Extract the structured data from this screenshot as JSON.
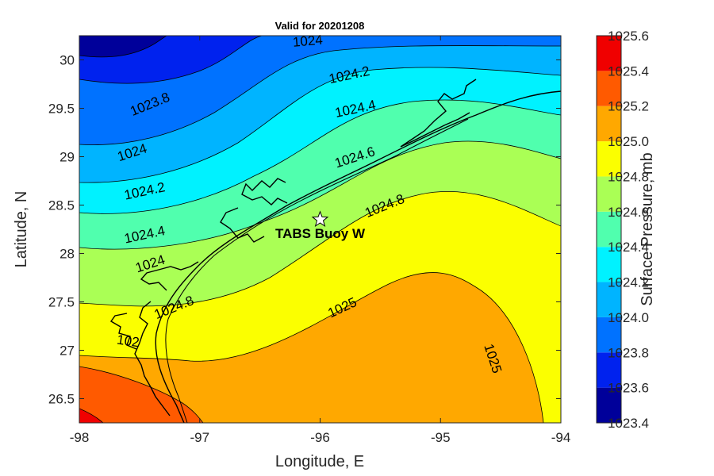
{
  "chart_data": {
    "type": "contour-map",
    "title": "Valid for 20201208",
    "xlabel": "Longitude, E",
    "ylabel": "Latitude, N",
    "xlim": [
      -98,
      -94
    ],
    "ylim": [
      26.25,
      30.25
    ],
    "xticks": [
      "-98",
      "-97",
      "-96",
      "-95",
      "-94"
    ],
    "yticks": [
      "26.5",
      "27",
      "27.5",
      "28",
      "28.5",
      "29",
      "29.5",
      "30"
    ],
    "colorbar": {
      "label": "Surface Pressure, mb",
      "ticks": [
        "1023.4",
        "1023.6",
        "1023.8",
        "1024.0",
        "1024.2",
        "1024.4",
        "1024.6",
        "1024.8",
        "1025.0",
        "1025.2",
        "1025.4",
        "1025.6"
      ],
      "levels": [
        1023.4,
        1023.6,
        1023.8,
        1024.0,
        1024.2,
        1024.4,
        1024.6,
        1024.8,
        1025.0,
        1025.2,
        1025.4,
        1025.6
      ],
      "colors": [
        "#00009a",
        "#0022ee",
        "#0072ff",
        "#00b4ff",
        "#00f2ff",
        "#50ffae",
        "#aaff55",
        "#fbff00",
        "#ffa800",
        "#ff5a00",
        "#f00000"
      ]
    },
    "contour_labels": [
      {
        "text": "1024",
        "lon": -96.1,
        "lat": 30.15
      },
      {
        "text": "1024.2",
        "lon": -95.75,
        "lat": 29.8
      },
      {
        "text": "1024.4",
        "lon": -95.7,
        "lat": 29.45
      },
      {
        "text": "1024.6",
        "lon": -95.7,
        "lat": 28.95
      },
      {
        "text": "1024.8",
        "lon": -95.45,
        "lat": 28.45
      },
      {
        "text": "1025",
        "lon": -95.8,
        "lat": 27.4
      },
      {
        "text": "1025",
        "lon": -94.6,
        "lat": 26.9
      },
      {
        "text": "1023.8",
        "lon": -97.4,
        "lat": 29.5
      },
      {
        "text": "1024",
        "lon": -97.55,
        "lat": 29.0
      },
      {
        "text": "1024.2",
        "lon": -97.45,
        "lat": 28.6
      },
      {
        "text": "1024.4",
        "lon": -97.45,
        "lat": 28.15
      },
      {
        "text": "1024",
        "lon": -97.4,
        "lat": 27.85
      },
      {
        "text": "1024.8",
        "lon": -97.2,
        "lat": 27.4
      },
      {
        "text": "102",
        "lon": -97.6,
        "lat": 27.05
      }
    ],
    "markers": [
      {
        "label": "TABS Buoy W",
        "lon": -96.0,
        "lat": 28.35,
        "symbol": "star"
      }
    ]
  }
}
